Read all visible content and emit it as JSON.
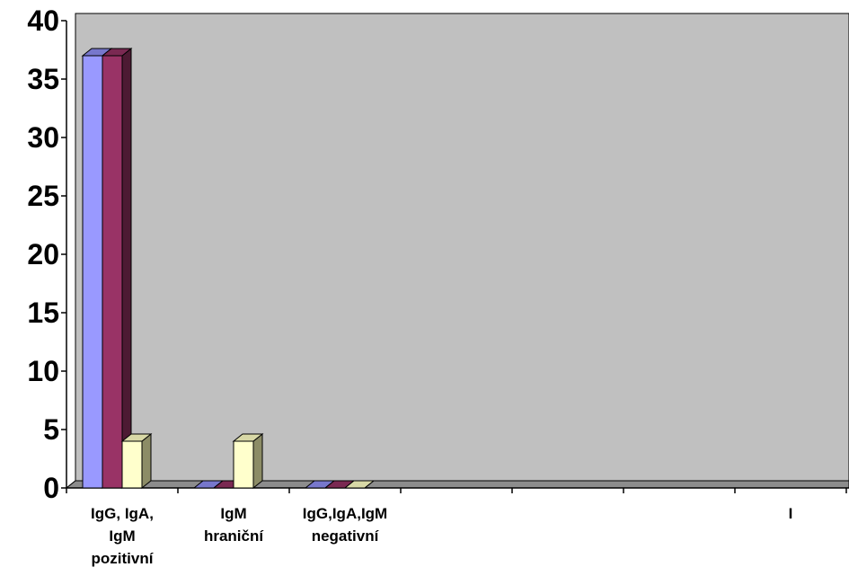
{
  "chart_data": {
    "type": "bar",
    "title": "",
    "xlabel": "",
    "ylabel": "",
    "ylim": [
      0,
      40
    ],
    "yticks": [
      0,
      5,
      10,
      15,
      20,
      25,
      30,
      35,
      40
    ],
    "categories": [
      [
        "IgG, IgA,",
        "IgM",
        "pozitivní"
      ],
      [
        "IgM",
        "hraniční"
      ],
      [
        "IgG,IgA,IgM",
        "negativní"
      ],
      [
        ""
      ],
      [
        ""
      ],
      [
        ""
      ],
      [
        "I"
      ]
    ],
    "series": [
      {
        "values": [
          37,
          0,
          0,
          null,
          null,
          null,
          null
        ]
      },
      {
        "values": [
          37,
          0,
          0,
          null,
          null,
          null,
          null
        ]
      },
      {
        "values": [
          4,
          4,
          0,
          null,
          null,
          null,
          null
        ]
      }
    ],
    "grid": false,
    "legend": "none",
    "colors": {
      "series": [
        "#9999ff",
        "#993366",
        "#ffffcc"
      ],
      "series_top": [
        "#7777cc",
        "#7a2952",
        "#d8d8a6"
      ],
      "series_side": [
        "#4d4d80",
        "#4d1a33",
        "#8c8c66"
      ],
      "wall": "#c0c0c0",
      "floor": "#8c8c8c",
      "axis": "#000000"
    }
  }
}
